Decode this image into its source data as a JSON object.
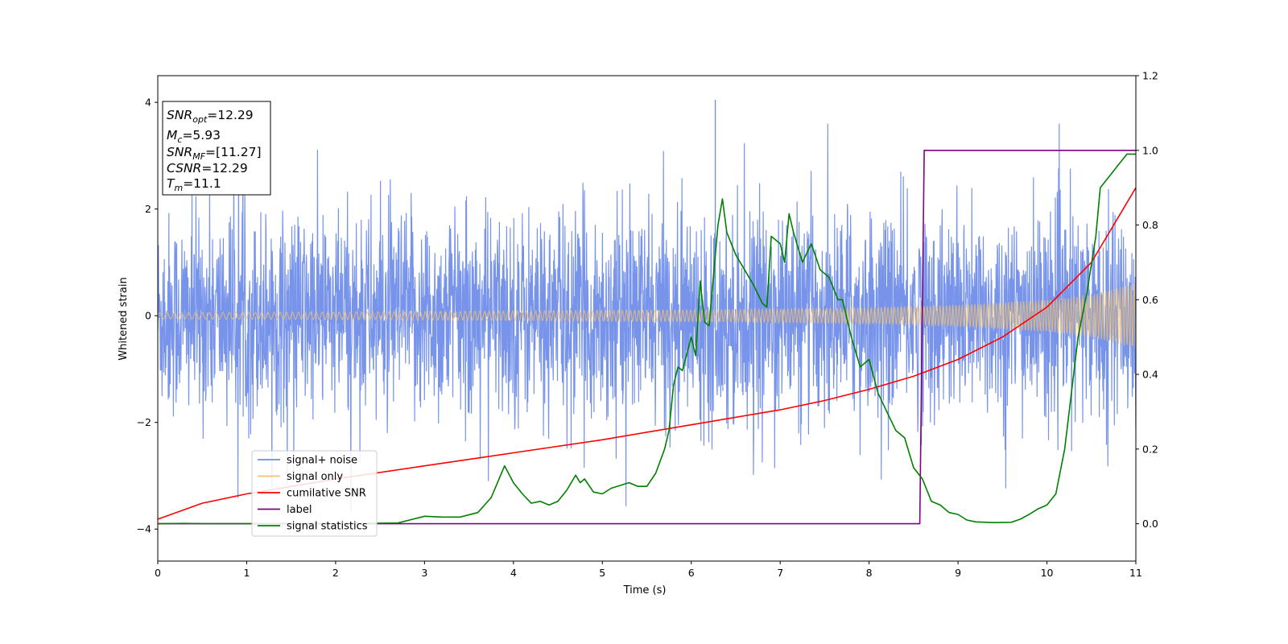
{
  "chart_data": {
    "type": "line",
    "xlabel": "Time (s)",
    "ylabel": "Whitened strain",
    "xlim": [
      0,
      11
    ],
    "ylim_left": [
      -4.6,
      4.5
    ],
    "ylim_right": [
      -0.1,
      1.2
    ],
    "x_ticks": [
      "0",
      "1",
      "2",
      "3",
      "4",
      "5",
      "6",
      "7",
      "8",
      "9",
      "10",
      "11"
    ],
    "y_ticks_left": [
      "−4",
      "−2",
      "0",
      "2",
      "4"
    ],
    "y_ticks_right": [
      "0.0",
      "0.2",
      "0.4",
      "0.6",
      "0.8",
      "1.0",
      "1.2"
    ],
    "legend_position": "lower-left",
    "info_box": {
      "snr_opt": {
        "base": "SNR",
        "sub": "opt",
        "value": "=12.29"
      },
      "mc": {
        "base": "M",
        "sub": "c",
        "value": "=5.93"
      },
      "snr_mf": {
        "base": "SNR",
        "sub": "MF",
        "value": "=[11.27]"
      },
      "csnr": {
        "base": "CSNR",
        "value": "=12.29"
      },
      "tm": {
        "base": "T",
        "sub": "m",
        "value": "=11.1"
      }
    },
    "series": [
      {
        "name": "signal+ noise",
        "color": "#6b8be8",
        "axis": "left",
        "description_values": {
          "noise_sigma": 0.95,
          "typical_range": [
            -2.8,
            3.3
          ],
          "peak": 4.05,
          "peak_x": 6.27
        }
      },
      {
        "name": "signal only",
        "color": "#f5c16c",
        "axis": "left",
        "envelope": {
          "x": [
            0,
            2,
            4,
            6,
            8,
            9,
            10,
            10.5,
            11
          ],
          "amplitude": [
            0.06,
            0.07,
            0.09,
            0.11,
            0.15,
            0.2,
            0.3,
            0.4,
            0.62
          ]
        }
      },
      {
        "name": "cumilative SNR",
        "color": "#ff0000",
        "axis": "right",
        "x": [
          0,
          0.5,
          1,
          2,
          3,
          4,
          5,
          6,
          7,
          7.5,
          8,
          8.5,
          9,
          9.5,
          10,
          10.5,
          11
        ],
        "y": [
          0.012,
          0.055,
          0.08,
          0.12,
          0.155,
          0.19,
          0.225,
          0.265,
          0.305,
          0.33,
          0.36,
          0.395,
          0.44,
          0.5,
          0.58,
          0.7,
          0.9
        ]
      },
      {
        "name": "label",
        "color": "#800080",
        "axis": "right",
        "x": [
          0,
          8.57,
          8.62,
          11
        ],
        "y": [
          0,
          0,
          1.0,
          1.0
        ]
      },
      {
        "name": "signal statistics",
        "color": "#008000",
        "axis": "right",
        "x": [
          0,
          0.3,
          0.6,
          1,
          2,
          2.7,
          3,
          3.2,
          3.4,
          3.6,
          3.75,
          3.9,
          4.0,
          4.1,
          4.2,
          4.3,
          4.4,
          4.5,
          4.6,
          4.7,
          4.75,
          4.8,
          4.9,
          5.0,
          5.1,
          5.3,
          5.4,
          5.5,
          5.6,
          5.7,
          5.75,
          5.8,
          5.85,
          5.9,
          6.0,
          6.05,
          6.1,
          6.15,
          6.2,
          6.3,
          6.35,
          6.4,
          6.5,
          6.6,
          6.7,
          6.8,
          6.85,
          6.9,
          7.0,
          7.05,
          7.1,
          7.15,
          7.25,
          7.35,
          7.45,
          7.55,
          7.65,
          7.7,
          7.8,
          7.9,
          8.0,
          8.1,
          8.2,
          8.3,
          8.4,
          8.5,
          8.6,
          8.7,
          8.8,
          8.9,
          9.0,
          9.1,
          9.2,
          9.4,
          9.6,
          9.7,
          9.8,
          9.9,
          10.0,
          10.1,
          10.2,
          10.3,
          10.35,
          10.45,
          10.55,
          10.6,
          10.7,
          10.8,
          10.9,
          11.0
        ],
        "y": [
          0.0,
          0.001,
          0.0,
          0.0,
          0.0,
          0.002,
          0.02,
          0.018,
          0.018,
          0.03,
          0.07,
          0.155,
          0.11,
          0.08,
          0.055,
          0.06,
          0.05,
          0.06,
          0.09,
          0.13,
          0.11,
          0.12,
          0.085,
          0.08,
          0.095,
          0.11,
          0.1,
          0.1,
          0.135,
          0.2,
          0.25,
          0.37,
          0.42,
          0.41,
          0.5,
          0.45,
          0.65,
          0.54,
          0.53,
          0.8,
          0.87,
          0.78,
          0.72,
          0.68,
          0.64,
          0.59,
          0.58,
          0.77,
          0.75,
          0.7,
          0.83,
          0.78,
          0.7,
          0.75,
          0.68,
          0.66,
          0.6,
          0.6,
          0.5,
          0.42,
          0.44,
          0.35,
          0.3,
          0.25,
          0.23,
          0.15,
          0.12,
          0.06,
          0.05,
          0.03,
          0.025,
          0.01,
          0.005,
          0.003,
          0.004,
          0.012,
          0.025,
          0.04,
          0.05,
          0.08,
          0.2,
          0.4,
          0.5,
          0.62,
          0.77,
          0.9,
          0.93,
          0.96,
          0.99,
          0.99
        ]
      }
    ]
  }
}
